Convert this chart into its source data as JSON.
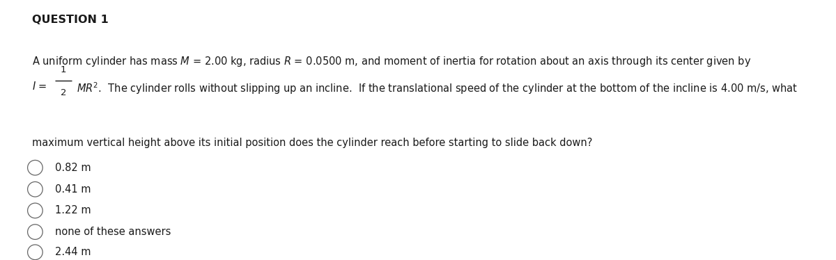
{
  "title": "QUESTION 1",
  "bg_color": "#ffffff",
  "text_color": "#1a1a1a",
  "title_fontsize": 11.5,
  "title_fontweight": "bold",
  "font_size": 10.5,
  "line1": "A uniform cylinder has mass $M$ = 2.00 kg, radius $R$ = 0.0500 m, and moment of inertia for rotation about an axis through its center given by",
  "line2_prefix": "$I$ = ",
  "line2_frac_num": "1",
  "line2_frac_den": "2",
  "line2_suffix": "$MR^2$.  The cylinder rolls without slipping up an incline.  If the translational speed of the cylinder at the bottom of the incline is 4.00 m/s, what",
  "line3": "maximum vertical height above its initial position does the cylinder reach before starting to slide back down?",
  "choices": [
    "0.82 m",
    "0.41 m",
    "1.22 m",
    "none of these answers",
    "2.44 m"
  ]
}
